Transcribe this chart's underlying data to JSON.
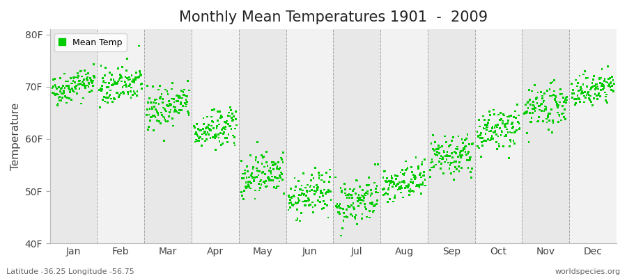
{
  "title": "Monthly Mean Temperatures 1901  -  2009",
  "ylabel": "Temperature",
  "y_ticks": [
    40,
    50,
    60,
    70,
    80
  ],
  "y_tick_labels": [
    "40F",
    "50F",
    "60F",
    "70F",
    "80F"
  ],
  "ylim": [
    40,
    81
  ],
  "months": [
    "Jan",
    "Feb",
    "Mar",
    "Apr",
    "May",
    "Jun",
    "Jul",
    "Aug",
    "Sep",
    "Oct",
    "Nov",
    "Dec"
  ],
  "legend_label": "Mean Temp",
  "dot_color": "#00cc00",
  "background_color": "#ffffff",
  "band_color_odd": "#e8e8e8",
  "band_color_even": "#f2f2f2",
  "subtitle_left": "Latitude -36.25 Longitude -56.75",
  "subtitle_right": "worldspecies.org",
  "title_fontsize": 15,
  "axis_fontsize": 10,
  "month_means_1901": [
    69.0,
    69.5,
    65.5,
    61.0,
    52.5,
    48.0,
    47.0,
    50.5,
    55.5,
    60.5,
    65.0,
    68.5
  ],
  "month_means_2009": [
    71.5,
    71.0,
    67.0,
    62.5,
    54.5,
    50.5,
    49.5,
    52.5,
    57.5,
    62.5,
    67.0,
    70.5
  ],
  "month_stds": [
    1.5,
    1.8,
    2.0,
    1.8,
    2.0,
    2.0,
    2.2,
    1.8,
    2.0,
    2.0,
    2.0,
    1.5
  ],
  "num_years": 109,
  "seed": 42
}
